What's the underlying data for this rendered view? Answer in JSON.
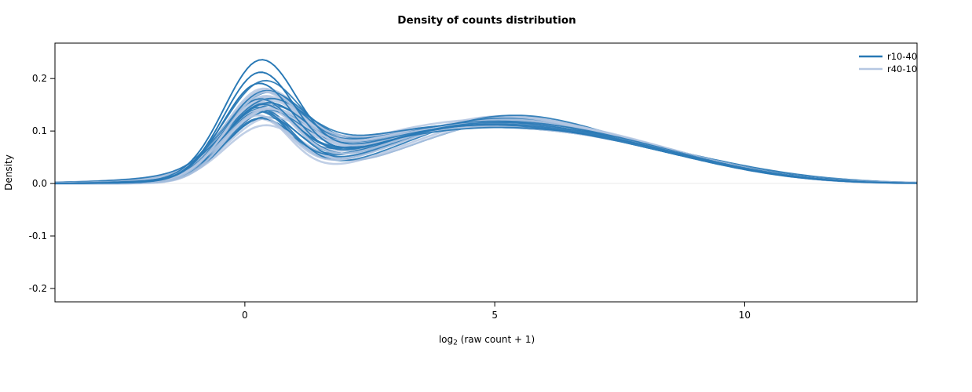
{
  "chart_data": {
    "type": "line",
    "title": "Density of counts distribution",
    "xlabel": "log2 (raw count + 1)",
    "xlabel_parts": {
      "prefix": "log",
      "sub": "2",
      "rest": " (raw count + 1)"
    },
    "ylabel": "Density",
    "xlim": [
      -3.8,
      13.45
    ],
    "ylim": [
      -0.2255,
      0.2675
    ],
    "xticks": [
      0,
      5,
      10
    ],
    "xtick_labels": [
      "0",
      "5",
      "10"
    ],
    "yticks": [
      -0.2,
      -0.1,
      0.0,
      0.1,
      0.2
    ],
    "ytick_labels": [
      "-0.2",
      "-0.1",
      "0.0",
      "0.1",
      "0.2"
    ],
    "grid": false,
    "legend_position": "top-right",
    "zero_line_color": "#e8e8e8",
    "box_color": "#000000",
    "curve_model": "y(x) = sum over triplets (h,m,s) of h*exp(-0.5*((x-m)/s)^2); each curve is a bimodal density: first peak near x=0.3, broad second mode near x=4.5-5.5, small tail bump near x=8",
    "legend": [
      {
        "label": "r10-40",
        "color": "#2878b5"
      },
      {
        "label": "r40-10",
        "color": "#b5c7e2"
      }
    ],
    "series": [
      {
        "name": "r10-40",
        "color": "#2878b5",
        "line_width": 1.8,
        "opacity": 0.92,
        "curves": [
          [
            0.21,
            0.3,
            0.72,
            0.105,
            4.5,
            2.5,
            0.03,
            8.0,
            1.9
          ],
          [
            0.172,
            0.25,
            0.7,
            0.112,
            4.8,
            2.4,
            0.028,
            8.4,
            1.8
          ],
          [
            0.16,
            0.35,
            0.75,
            0.098,
            4.2,
            2.7,
            0.035,
            7.8,
            2.0
          ],
          [
            0.148,
            0.28,
            0.68,
            0.12,
            5.0,
            2.3,
            0.026,
            8.6,
            1.7
          ],
          [
            0.14,
            0.4,
            0.8,
            0.108,
            4.4,
            2.6,
            0.032,
            8.1,
            1.9
          ],
          [
            0.135,
            0.22,
            0.66,
            0.125,
            5.2,
            2.2,
            0.024,
            8.8,
            1.6
          ],
          [
            0.13,
            0.33,
            0.74,
            0.102,
            4.0,
            2.8,
            0.036,
            7.6,
            2.1
          ],
          [
            0.128,
            0.45,
            0.82,
            0.115,
            4.9,
            2.4,
            0.029,
            8.3,
            1.8
          ],
          [
            0.124,
            0.27,
            0.69,
            0.095,
            4.3,
            2.6,
            0.04,
            7.9,
            2.2
          ],
          [
            0.12,
            0.38,
            0.78,
            0.118,
            5.4,
            2.1,
            0.022,
            9.0,
            1.6
          ],
          [
            0.118,
            0.24,
            0.67,
            0.11,
            4.6,
            2.5,
            0.031,
            8.2,
            1.9
          ],
          [
            0.115,
            0.36,
            0.76,
            0.1,
            4.1,
            2.7,
            0.037,
            7.7,
            2.0
          ],
          [
            0.112,
            0.3,
            0.71,
            0.122,
            5.1,
            2.2,
            0.025,
            8.7,
            1.7
          ],
          [
            0.11,
            0.42,
            0.81,
            0.106,
            4.5,
            2.5,
            0.033,
            8.0,
            1.9
          ],
          [
            0.108,
            0.26,
            0.68,
            0.114,
            4.8,
            2.3,
            0.027,
            8.5,
            1.8
          ],
          [
            0.105,
            0.34,
            0.75,
            0.097,
            4.2,
            2.7,
            0.038,
            7.8,
            2.1
          ],
          [
            0.13,
            0.29,
            0.7,
            0.128,
            5.3,
            2.1,
            0.023,
            8.9,
            1.6
          ],
          [
            0.145,
            0.37,
            0.77,
            0.104,
            4.4,
            2.6,
            0.034,
            8.1,
            1.9
          ],
          [
            0.122,
            0.23,
            0.66,
            0.117,
            4.9,
            2.3,
            0.028,
            8.4,
            1.8
          ],
          [
            0.117,
            0.41,
            0.8,
            0.099,
            4.0,
            2.8,
            0.041,
            7.5,
            2.2
          ],
          [
            0.192,
            0.28,
            0.71,
            0.108,
            4.7,
            2.4,
            0.03,
            8.2,
            1.8
          ],
          [
            0.138,
            0.32,
            0.73,
            0.121,
            5.0,
            2.2,
            0.026,
            8.6,
            1.7
          ],
          [
            0.126,
            0.39,
            0.79,
            0.111,
            4.6,
            2.5,
            0.032,
            8.0,
            1.9
          ],
          [
            0.133,
            0.25,
            0.68,
            0.093,
            4.3,
            2.6,
            0.039,
            7.7,
            2.1
          ]
        ]
      },
      {
        "name": "r40-10",
        "color": "#b5c7e2",
        "line_width": 2.6,
        "opacity": 0.85,
        "curves": [
          [
            0.155,
            0.32,
            0.74,
            0.11,
            4.6,
            2.5,
            0.03,
            8.1,
            1.9
          ],
          [
            0.148,
            0.27,
            0.7,
            0.118,
            5.0,
            2.3,
            0.026,
            8.5,
            1.8
          ],
          [
            0.142,
            0.36,
            0.77,
            0.101,
            4.2,
            2.7,
            0.036,
            7.7,
            2.1
          ],
          [
            0.138,
            0.24,
            0.67,
            0.124,
            5.2,
            2.2,
            0.023,
            8.8,
            1.6
          ],
          [
            0.134,
            0.4,
            0.8,
            0.107,
            4.5,
            2.5,
            0.032,
            8.0,
            1.9
          ],
          [
            0.13,
            0.3,
            0.72,
            0.115,
            4.8,
            2.4,
            0.028,
            8.3,
            1.8
          ],
          [
            0.127,
            0.34,
            0.75,
            0.096,
            4.1,
            2.8,
            0.039,
            7.6,
            2.2
          ],
          [
            0.124,
            0.22,
            0.66,
            0.121,
            5.3,
            2.1,
            0.024,
            8.9,
            1.6
          ],
          [
            0.121,
            0.43,
            0.82,
            0.109,
            4.7,
            2.4,
            0.031,
            8.2,
            1.9
          ],
          [
            0.118,
            0.28,
            0.69,
            0.113,
            4.4,
            2.6,
            0.034,
            7.9,
            2.0
          ],
          [
            0.115,
            0.37,
            0.78,
            0.098,
            4.0,
            2.8,
            0.04,
            7.5,
            2.2
          ],
          [
            0.112,
            0.25,
            0.68,
            0.126,
            5.1,
            2.2,
            0.022,
            8.7,
            1.7
          ],
          [
            0.11,
            0.33,
            0.74,
            0.104,
            4.3,
            2.6,
            0.035,
            7.8,
            2.0
          ],
          [
            0.108,
            0.45,
            0.83,
            0.116,
            4.9,
            2.3,
            0.027,
            8.4,
            1.8
          ],
          [
            0.106,
            0.29,
            0.71,
            0.1,
            4.2,
            2.7,
            0.037,
            7.7,
            2.1
          ],
          [
            0.104,
            0.38,
            0.79,
            0.119,
            5.4,
            2.1,
            0.025,
            9.0,
            1.6
          ],
          [
            0.15,
            0.31,
            0.73,
            0.108,
            4.6,
            2.5,
            0.029,
            8.1,
            1.9
          ],
          [
            0.136,
            0.26,
            0.69,
            0.112,
            4.8,
            2.4,
            0.033,
            8.0,
            1.9
          ],
          [
            0.128,
            0.35,
            0.76,
            0.095,
            4.1,
            2.7,
            0.038,
            7.6,
            2.1
          ],
          [
            0.12,
            0.23,
            0.67,
            0.123,
            5.2,
            2.2,
            0.024,
            8.8,
            1.7
          ],
          [
            0.114,
            0.42,
            0.81,
            0.106,
            4.5,
            2.5,
            0.031,
            8.2,
            1.9
          ],
          [
            0.146,
            0.28,
            0.7,
            0.117,
            5.0,
            2.3,
            0.027,
            8.5,
            1.8
          ],
          [
            0.109,
            0.36,
            0.77,
            0.102,
            4.3,
            2.6,
            0.036,
            7.8,
            2.0
          ],
          [
            0.152,
            0.39,
            0.75,
            0.111,
            4.7,
            2.4,
            0.03,
            8.3,
            1.8
          ]
        ]
      }
    ]
  }
}
